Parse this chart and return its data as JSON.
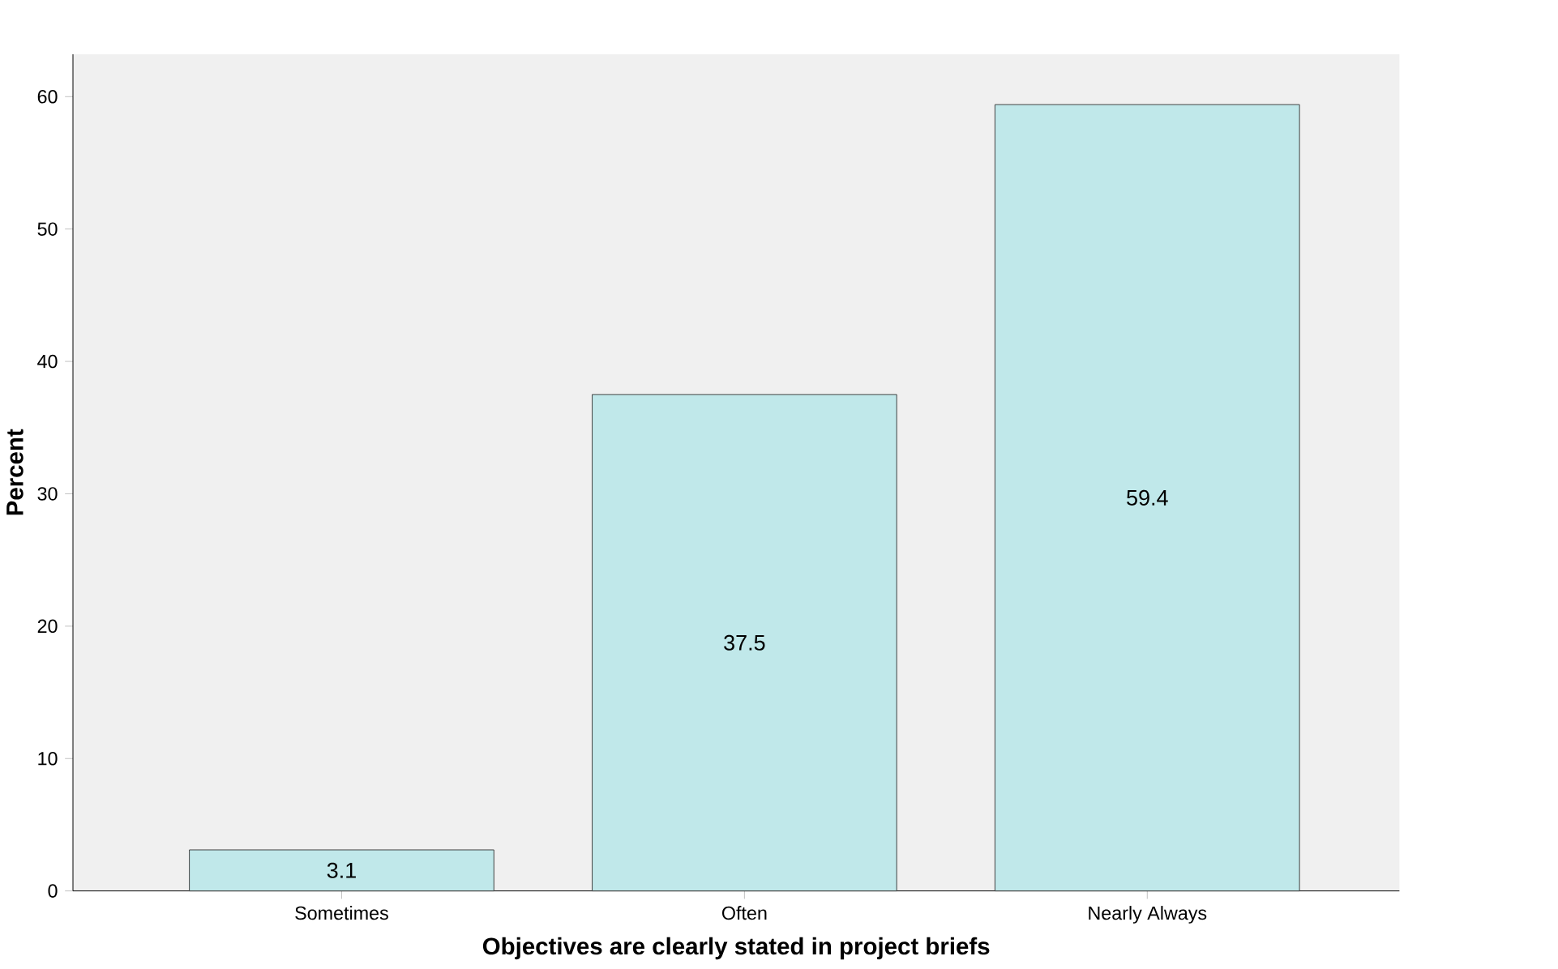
{
  "chart_data": {
    "type": "bar",
    "xlabel": "Objectives are clearly stated in project briefs",
    "ylabel": "Percent",
    "categories": [
      "Sometimes",
      "Often",
      "Nearly Always"
    ],
    "values": [
      3.1,
      37.5,
      59.4
    ],
    "value_labels": [
      "3.1",
      "37.5",
      "59.4"
    ],
    "color": "#c0e8ea",
    "ylim": [
      0,
      63.2
    ],
    "yticks": [
      0,
      10,
      20,
      30,
      40,
      50,
      60
    ],
    "grid": false
  }
}
